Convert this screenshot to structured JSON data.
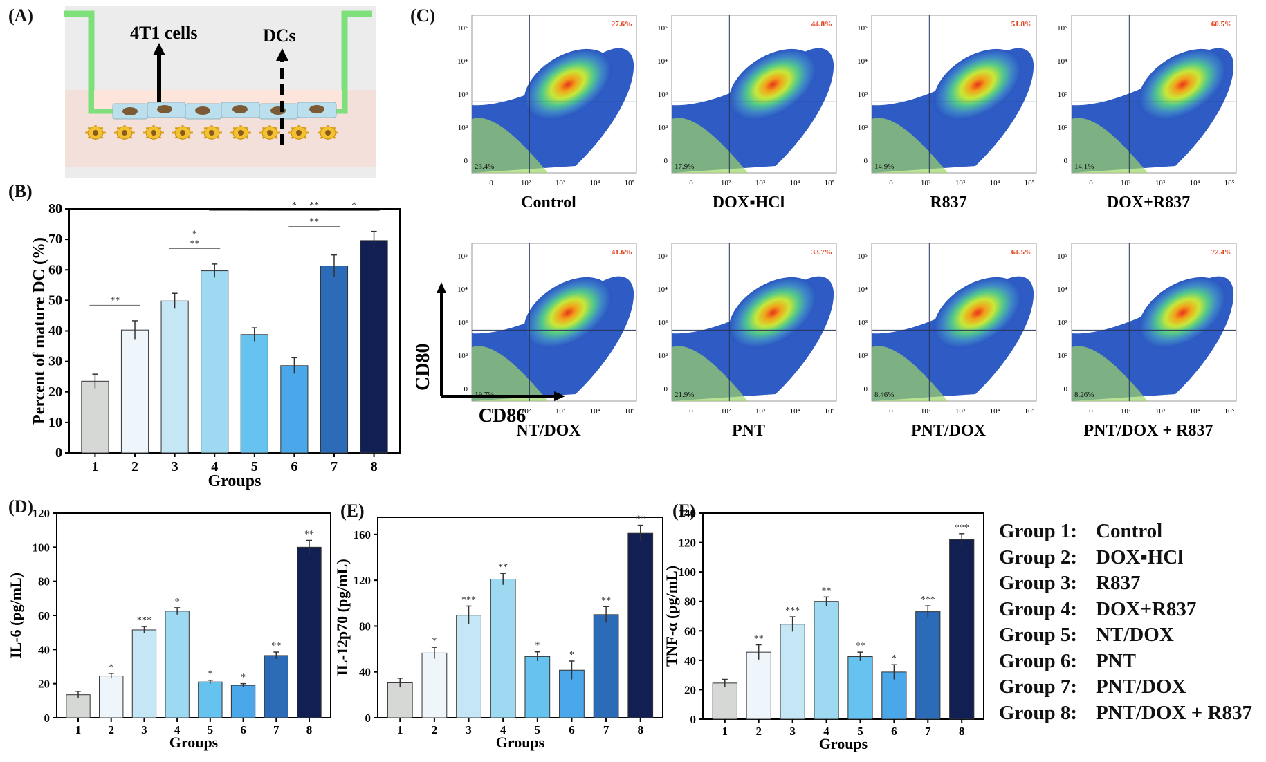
{
  "panels": {
    "A": {
      "letter": "(A)",
      "label_tumor": "4T1 cells",
      "label_dc": "DCs"
    },
    "B": {
      "letter": "(B)",
      "chart_data": {
        "type": "bar",
        "categories": [
          "1",
          "2",
          "3",
          "4",
          "5",
          "6",
          "7",
          "8"
        ],
        "values": [
          23.5,
          40.3,
          49.8,
          59.7,
          38.8,
          28.6,
          61.3,
          69.6
        ],
        "errors": [
          2.3,
          3.0,
          2.5,
          2.2,
          2.2,
          2.6,
          3.6,
          3.0
        ],
        "xlabel": "Groups",
        "ylabel": "Percent of mature DC (%)",
        "ylim": [
          0,
          80
        ],
        "yticks": [
          0,
          10,
          20,
          30,
          40,
          50,
          60,
          70,
          80
        ],
        "significance": [
          {
            "a": 1,
            "b": 2,
            "label": "**"
          },
          {
            "a": 3,
            "b": 4,
            "label": "**"
          },
          {
            "a": 2,
            "b": 5,
            "label": "*"
          },
          {
            "a": 6,
            "b": 7,
            "label": "**"
          },
          {
            "a": 5,
            "b": 8,
            "label": "**"
          },
          {
            "a": 7,
            "b": 8,
            "label": "*"
          },
          {
            "a": 4,
            "b": 8,
            "label": "*"
          }
        ]
      }
    },
    "C": {
      "letter": "(C)",
      "xlabel": "CD86",
      "ylabel": "CD80",
      "plots": [
        {
          "name": "Control",
          "ur": "27.6%",
          "ll": "23.4%"
        },
        {
          "name": "DOX▪HCl",
          "ur": "44.8%",
          "ll": "17.9%"
        },
        {
          "name": "R837",
          "ur": "51.8%",
          "ll": "14.9%"
        },
        {
          "name": "DOX+R837",
          "ur": "60.5%",
          "ll": "14.1%"
        },
        {
          "name": "NT/DOX",
          "ur": "41.6%",
          "ll": "19.7%"
        },
        {
          "name": "PNT",
          "ur": "33.7%",
          "ll": "21.9%"
        },
        {
          "name": "PNT/DOX",
          "ur": "64.5%",
          "ll": "8.46%"
        },
        {
          "name": "PNT/DOX + R837",
          "ur": "72.4%",
          "ll": "8.26%"
        }
      ],
      "x_ticks": [
        "0",
        "10²",
        "10³",
        "10⁴",
        "10⁵"
      ],
      "y_ticks": [
        "0",
        "10²",
        "10³",
        "10⁴",
        "10⁵"
      ]
    },
    "D": {
      "letter": "(D)",
      "chart_data": {
        "type": "bar",
        "categories": [
          "1",
          "2",
          "3",
          "4",
          "5",
          "6",
          "7",
          "8"
        ],
        "values": [
          13.5,
          24.5,
          51.5,
          62.5,
          21,
          19,
          36.5,
          100
        ],
        "errors": [
          2.0,
          1.5,
          2.0,
          2.0,
          1.0,
          1.0,
          2.0,
          4.0
        ],
        "stars": [
          "",
          "*",
          "***",
          "*",
          "*",
          "*",
          "**",
          "**"
        ],
        "xlabel": "Groups",
        "ylabel": "IL-6 (pg/mL)",
        "ylim": [
          0,
          120
        ],
        "yticks": [
          0,
          20,
          40,
          60,
          80,
          100,
          120
        ]
      }
    },
    "E": {
      "letter": "(E)",
      "chart_data": {
        "type": "bar",
        "categories": [
          "1",
          "2",
          "3",
          "4",
          "5",
          "6",
          "7",
          "8"
        ],
        "values": [
          30.5,
          56.5,
          89.5,
          121,
          53.5,
          41.5,
          90,
          161
        ],
        "errors": [
          4.0,
          5.0,
          8.0,
          5.0,
          4.0,
          8.0,
          7.0,
          7.0
        ],
        "stars": [
          "",
          "*",
          "***",
          "**",
          "*",
          "*",
          "**",
          "**"
        ],
        "xlabel": "Groups",
        "ylabel": "IL-12p70 (pg/mL)",
        "ylim": [
          0,
          175
        ],
        "yticks": [
          0,
          40,
          80,
          120,
          160
        ]
      }
    },
    "F": {
      "letter": "(F)",
      "chart_data": {
        "type": "bar",
        "categories": [
          "1",
          "2",
          "3",
          "4",
          "5",
          "6",
          "7",
          "8"
        ],
        "values": [
          24.5,
          45.5,
          64.5,
          80,
          42.5,
          32,
          73,
          122
        ],
        "errors": [
          2.5,
          5.0,
          5.0,
          3.0,
          3.0,
          5.0,
          4.0,
          4.0
        ],
        "stars": [
          "",
          "**",
          "***",
          "**",
          "**",
          "*",
          "***",
          "***"
        ],
        "xlabel": "Groups",
        "ylabel": "TNF-α (pg/mL)",
        "ylim": [
          0,
          140
        ],
        "yticks": [
          0,
          20,
          40,
          60,
          80,
          100,
          120,
          140
        ]
      }
    }
  },
  "legend": [
    {
      "group": "Group 1:",
      "name": "Control"
    },
    {
      "group": "Group 2:",
      "name": "DOX▪HCl"
    },
    {
      "group": "Group 3:",
      "name": "R837"
    },
    {
      "group": "Group 4:",
      "name": "DOX+R837"
    },
    {
      "group": "Group 5:",
      "name": "NT/DOX"
    },
    {
      "group": "Group 6:",
      "name": "PNT"
    },
    {
      "group": "Group 7:",
      "name": "PNT/DOX"
    },
    {
      "group": "Group 8:",
      "name": "PNT/DOX + R837"
    }
  ],
  "colors": {
    "bars": [
      "#d6d8d6",
      "#eef6fb",
      "#c5e6f4",
      "#9dd9f1",
      "#66c3ef",
      "#4aa7ea",
      "#2b6bb8",
      "#121f52"
    ],
    "insert_green": "#7ee07a",
    "matrigel": "#fbe0d6",
    "plate": "#ececec"
  }
}
